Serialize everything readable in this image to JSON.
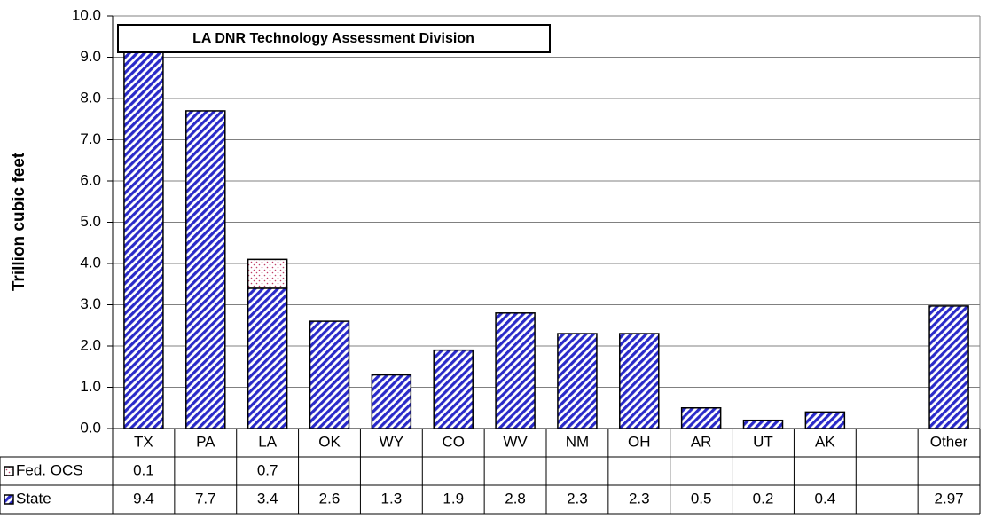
{
  "chart_data": {
    "type": "bar",
    "stacked": true,
    "annotation": "LA DNR Technology Assessment Division",
    "y_label": "Trillion cubic feet",
    "categories": [
      "TX",
      "PA",
      "LA",
      "OK",
      "WY",
      "CO",
      "WV",
      "NM",
      "OH",
      "AR",
      "UT",
      "AK",
      null,
      "Other"
    ],
    "series": [
      {
        "name": "Fed. OCS",
        "color": "#c0406a",
        "pattern": "dots",
        "values": [
          0.1,
          null,
          0.7,
          null,
          null,
          null,
          null,
          null,
          null,
          null,
          null,
          null,
          null,
          null
        ]
      },
      {
        "name": "State",
        "color": "#2a2ac8",
        "pattern": "stripes",
        "values": [
          9.4,
          7.7,
          3.4,
          2.6,
          1.3,
          1.9,
          2.8,
          2.3,
          2.3,
          0.5,
          0.2,
          0.4,
          null,
          2.97
        ]
      }
    ],
    "ylim": [
      0,
      10
    ],
    "yticks": [
      {
        "value": 0,
        "label": "0.0"
      },
      {
        "value": 1,
        "label": "1.0"
      },
      {
        "value": 2,
        "label": "2.0"
      },
      {
        "value": 3,
        "label": "3.0"
      },
      {
        "value": 4,
        "label": "4.0"
      },
      {
        "value": 5,
        "label": "5.0"
      },
      {
        "value": 6,
        "label": "6.0"
      },
      {
        "value": 7,
        "label": "7.0"
      },
      {
        "value": 8,
        "label": "8.0"
      },
      {
        "value": 9,
        "label": "9.0"
      },
      {
        "value": 10,
        "label": "10.0"
      }
    ],
    "grid": true
  }
}
